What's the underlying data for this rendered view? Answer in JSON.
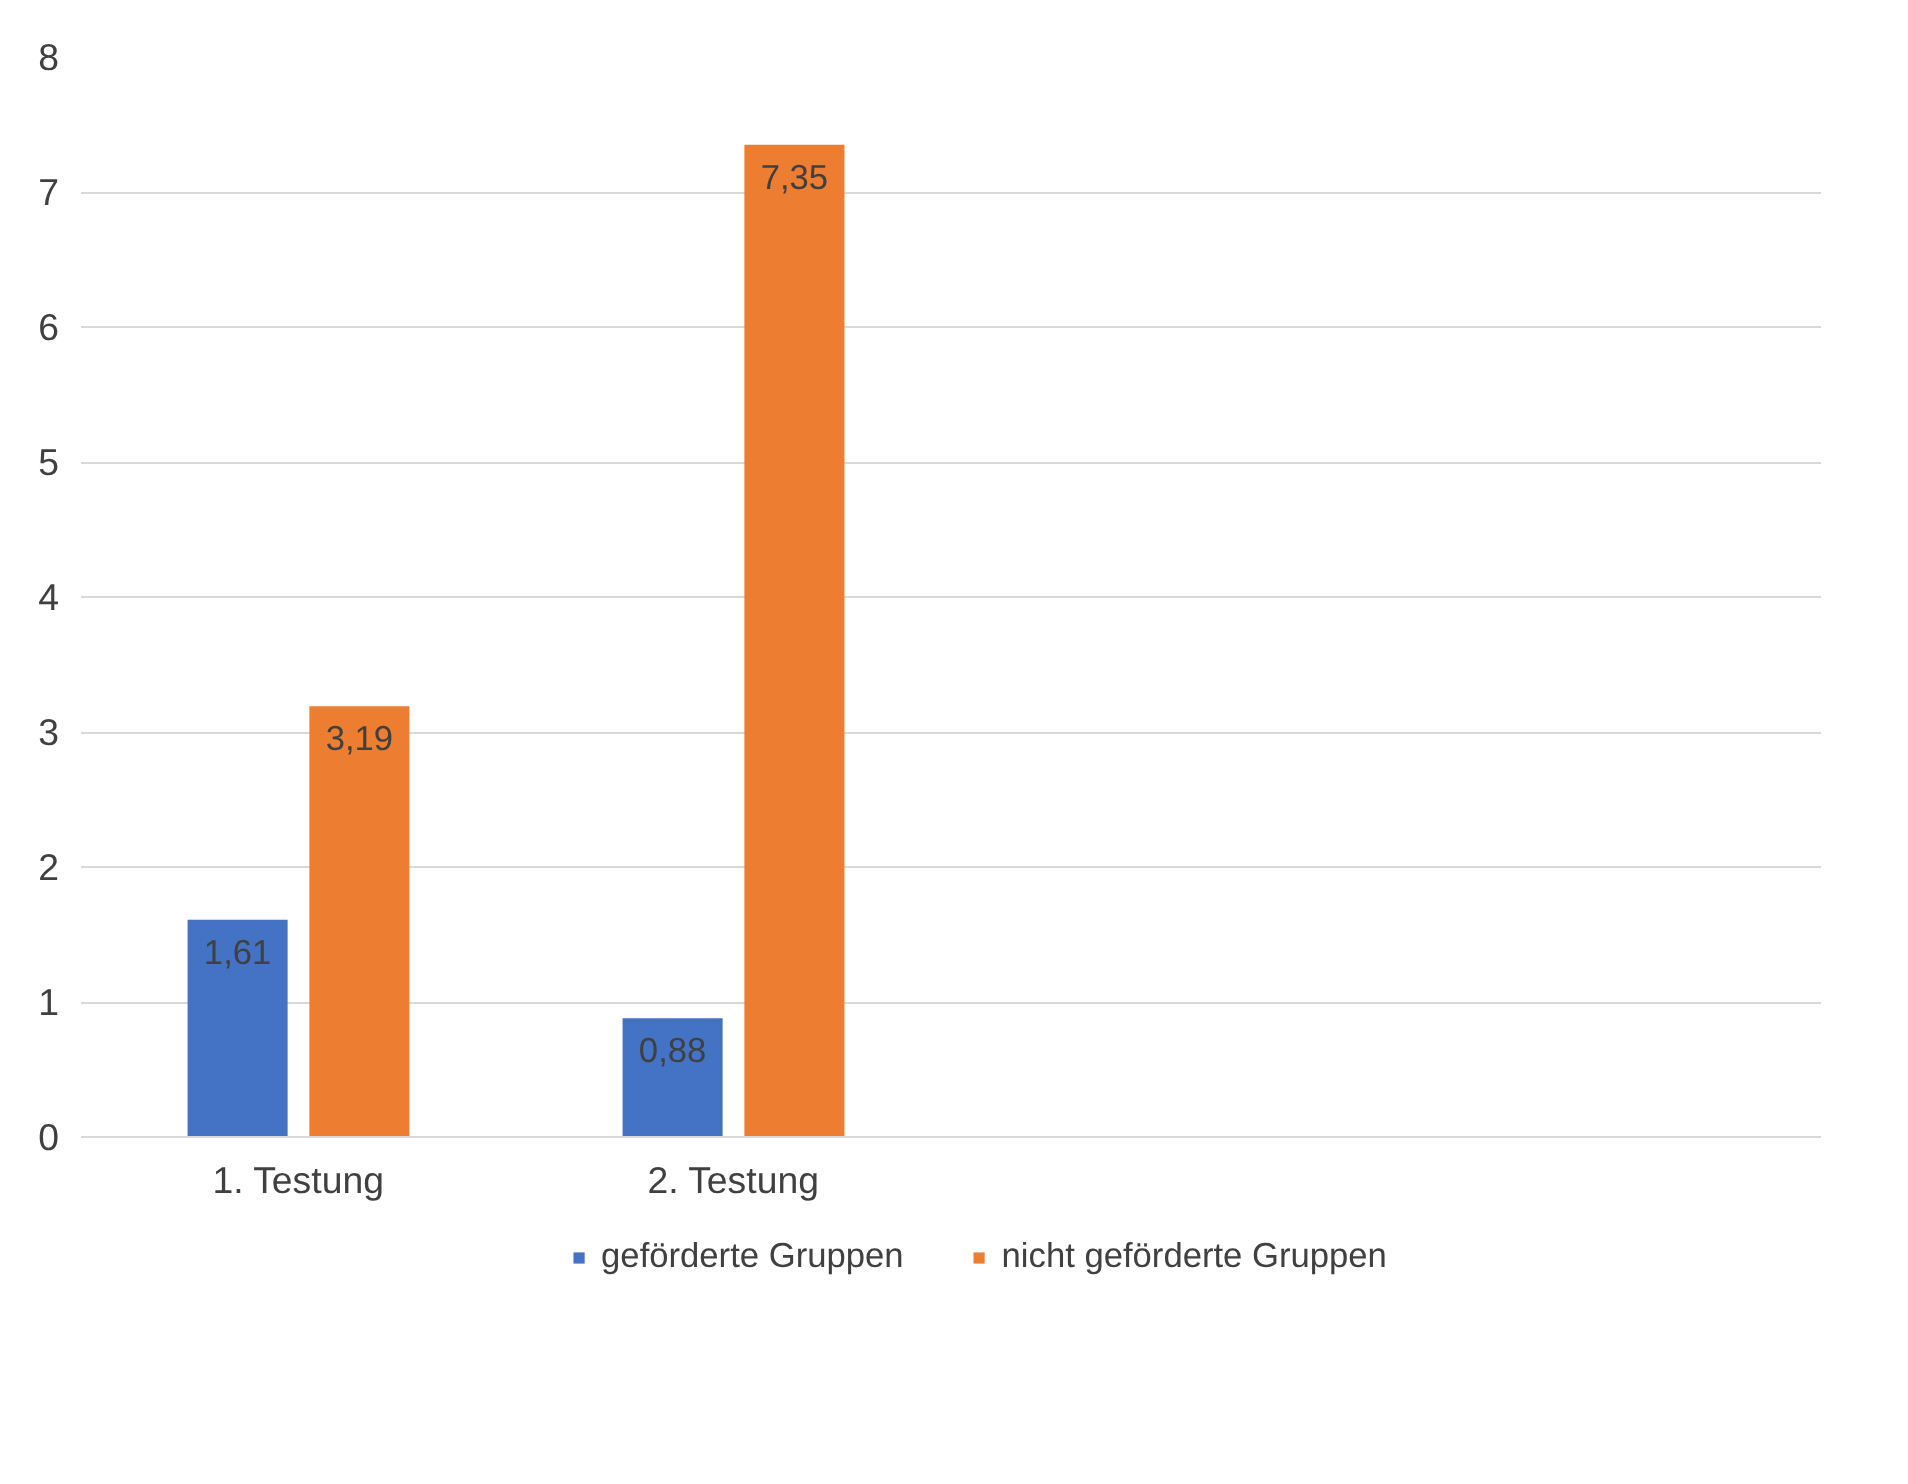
{
  "chart_data": {
    "type": "bar",
    "categories": [
      "1. Testung",
      "2. Testung",
      null,
      null
    ],
    "series": [
      {
        "name": "geförderte Gruppen",
        "color": "#4472c4",
        "values": [
          1.61,
          0.88,
          null,
          null
        ],
        "value_labels": [
          "1,61",
          "0,88",
          null,
          null
        ]
      },
      {
        "name": "nicht geförderte Gruppen",
        "color": "#ed7d31",
        "values": [
          3.19,
          7.35,
          null,
          null
        ],
        "value_labels": [
          "3,19",
          "7,35",
          null,
          null
        ]
      }
    ],
    "ylim": [
      0,
      8
    ],
    "yticks": [
      0,
      1,
      2,
      3,
      4,
      5,
      6,
      7,
      8
    ],
    "grid": "y",
    "legend": "bottom"
  }
}
